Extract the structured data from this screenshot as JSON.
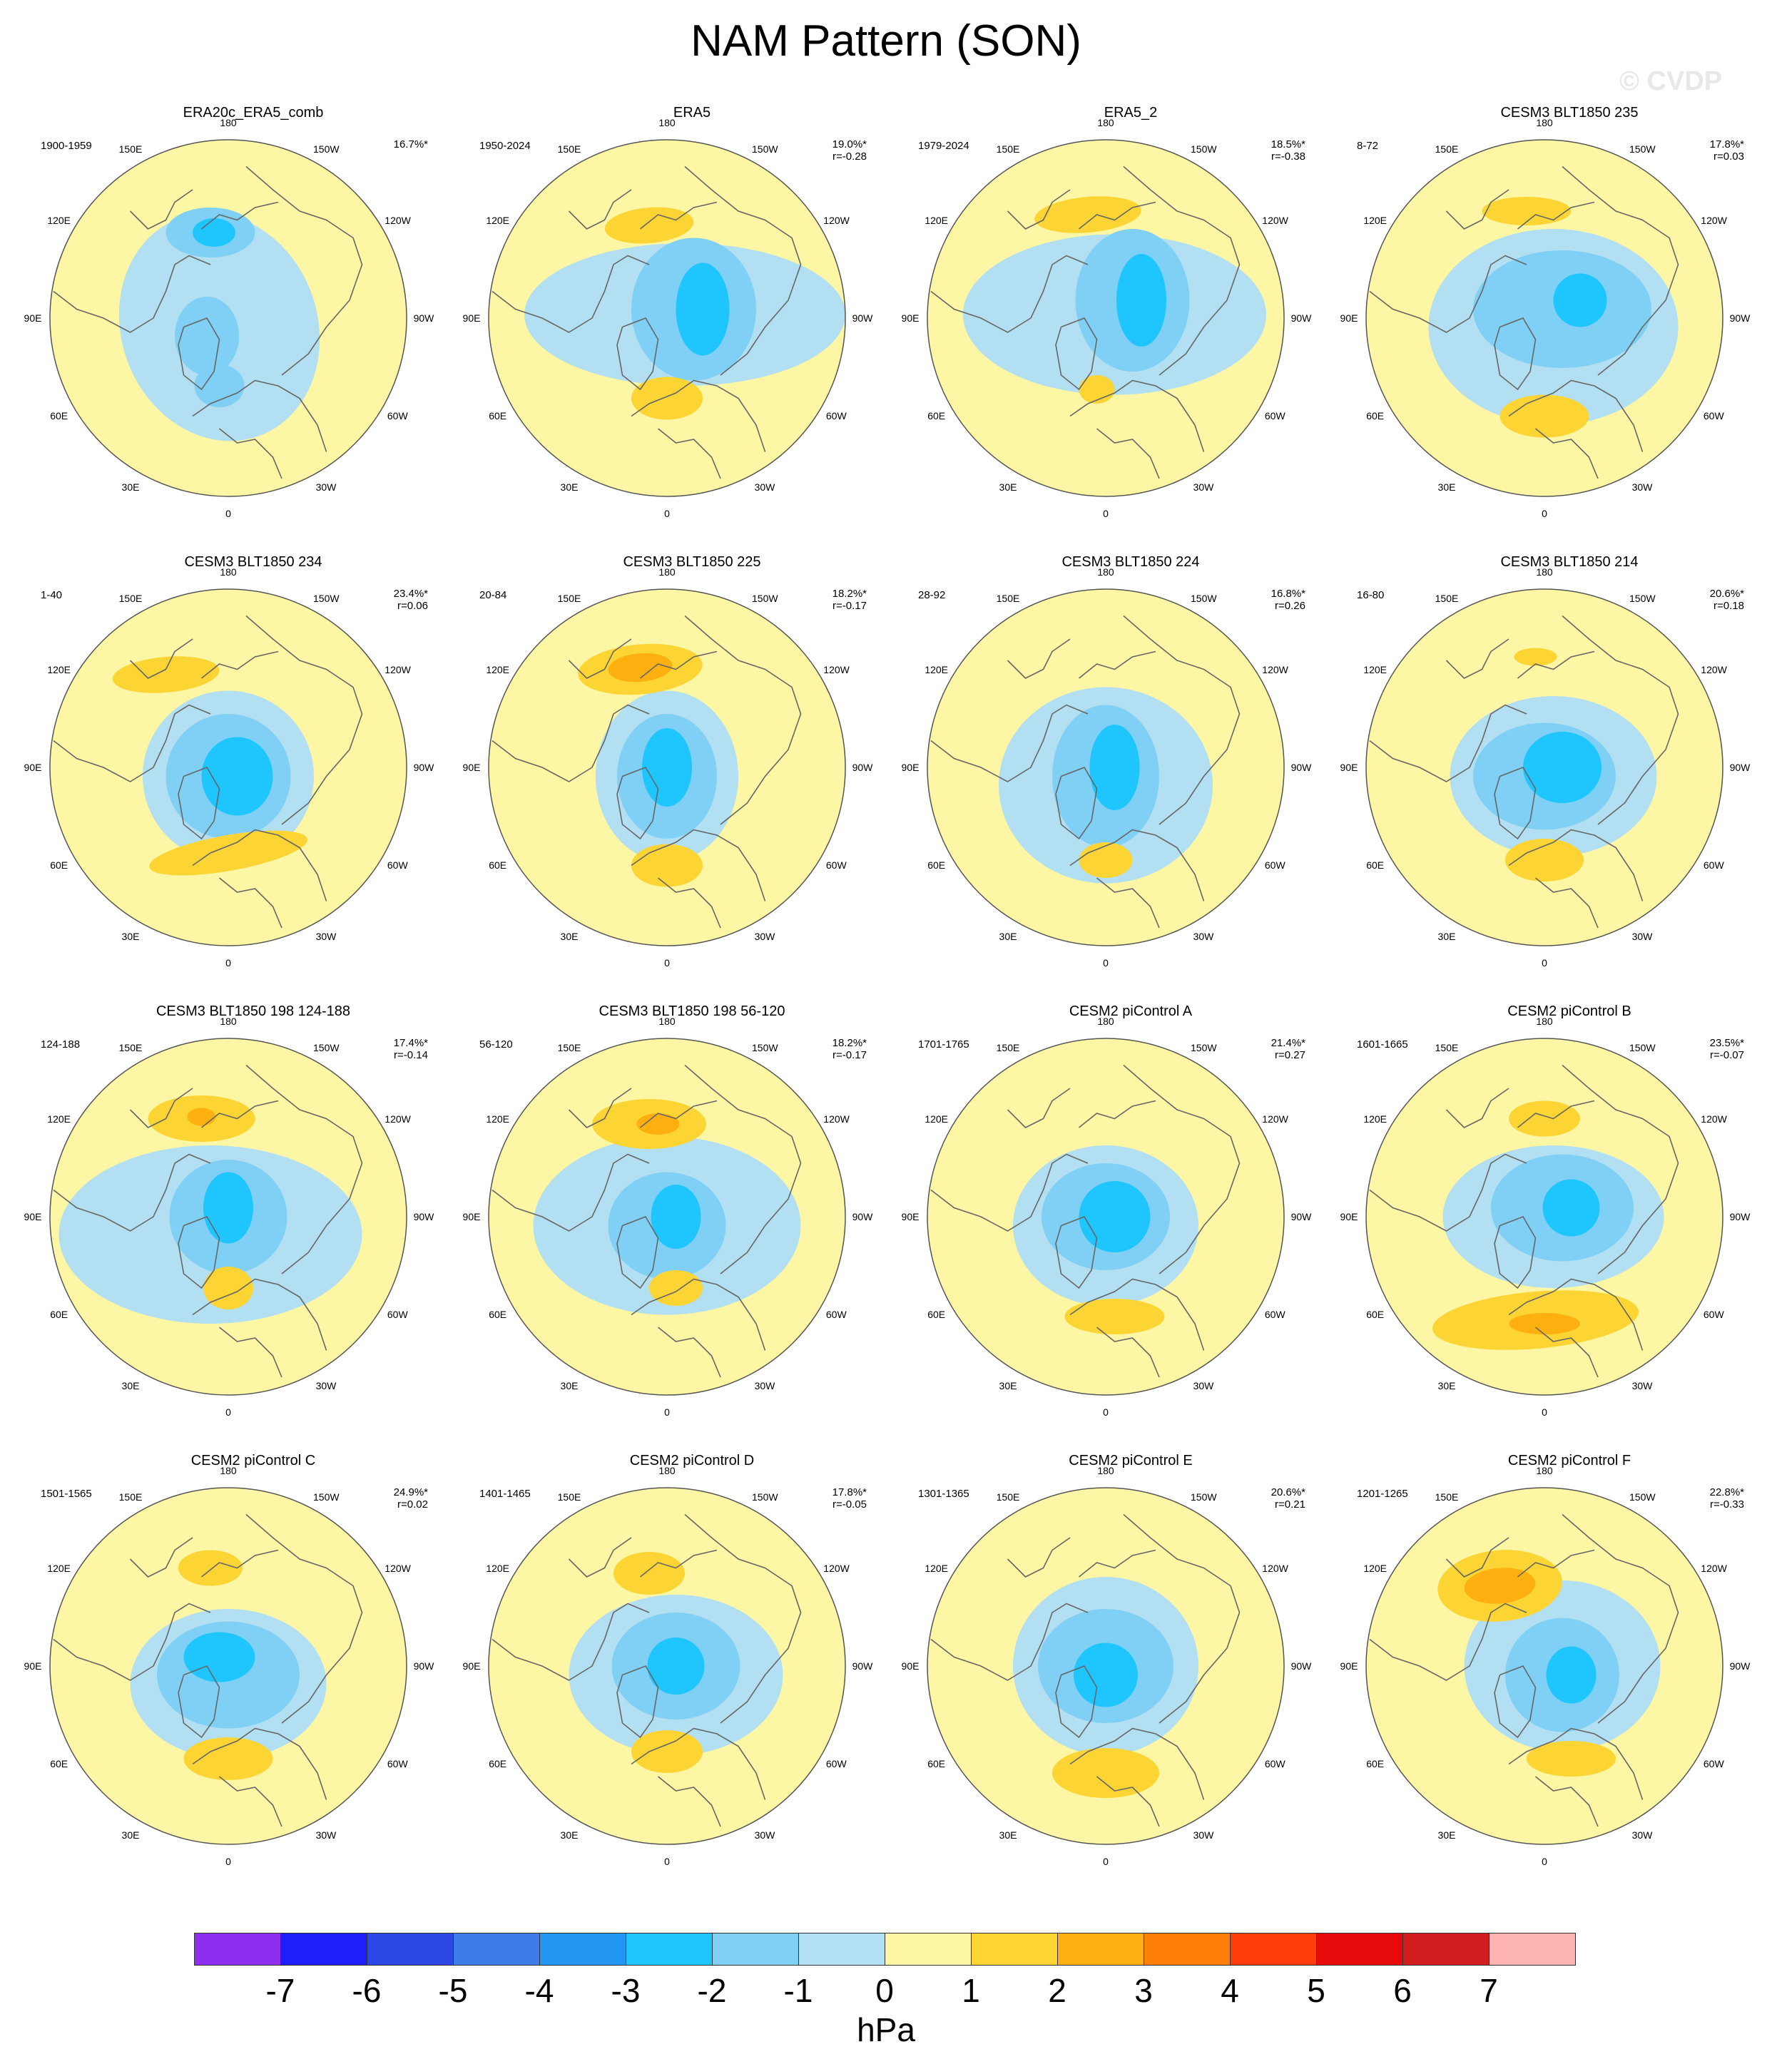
{
  "figure": {
    "title": "NAM Pattern (SON)",
    "watermark": "© CVDP",
    "colors": {
      "ocean_positive": "#fdf6a4",
      "ocean_negative": "#b2dff2",
      "coast": "#666666"
    }
  },
  "panels": [
    {
      "title": "ERA20c_ERA5_comb",
      "period": "1900-1959",
      "pct": "16.7%*",
      "r": ""
    },
    {
      "title": "ERA5",
      "period": "1950-2024",
      "pct": "19.0%*",
      "r": "r=-0.28"
    },
    {
      "title": "ERA5_2",
      "period": "1979-2024",
      "pct": "18.5%*",
      "r": "r=-0.38"
    },
    {
      "title": "CESM3 BLT1850 235",
      "period": "8-72",
      "pct": "17.8%*",
      "r": "r=0.03"
    },
    {
      "title": "CESM3 BLT1850 234",
      "period": "1-40",
      "pct": "23.4%*",
      "r": "r=0.06"
    },
    {
      "title": "CESM3 BLT1850 225",
      "period": "20-84",
      "pct": "18.2%*",
      "r": "r=-0.17"
    },
    {
      "title": "CESM3 BLT1850 224",
      "period": "28-92",
      "pct": "16.8%*",
      "r": "r=0.26"
    },
    {
      "title": "CESM3 BLT1850 214",
      "period": "16-80",
      "pct": "20.6%*",
      "r": "r=0.18"
    },
    {
      "title": "CESM3 BLT1850 198 124-188",
      "period": "124-188",
      "pct": "17.4%*",
      "r": "r=-0.14"
    },
    {
      "title": "CESM3 BLT1850 198 56-120",
      "period": "56-120",
      "pct": "18.2%*",
      "r": "r=-0.17"
    },
    {
      "title": "CESM2 piControl A",
      "period": "1701-1765",
      "pct": "21.4%*",
      "r": "r=0.27"
    },
    {
      "title": "CESM2 piControl B",
      "period": "1601-1665",
      "pct": "23.5%*",
      "r": "r=-0.07"
    },
    {
      "title": "CESM2 piControl C",
      "period": "1501-1565",
      "pct": "24.9%*",
      "r": "r=0.02"
    },
    {
      "title": "CESM2 piControl D",
      "period": "1401-1465",
      "pct": "17.8%*",
      "r": "r=-0.05"
    },
    {
      "title": "CESM2 piControl E",
      "period": "1301-1365",
      "pct": "20.6%*",
      "r": "r=0.21"
    },
    {
      "title": "CESM2 piControl F",
      "period": "1201-1265",
      "pct": "22.8%*",
      "r": "r=-0.33"
    }
  ],
  "longitude_labels": [
    "180",
    "150E",
    "120E",
    "90E",
    "60E",
    "30E",
    "0",
    "30W",
    "60W",
    "90W",
    "120W",
    "150W"
  ],
  "colorbar": {
    "unit": "hPa",
    "labels": [
      "-7",
      "-6",
      "-5",
      "-4",
      "-3",
      "-2",
      "-1",
      "0",
      "1",
      "2",
      "3",
      "4",
      "5",
      "6",
      "7"
    ],
    "colors": [
      "#8e2ff0",
      "#1e1efa",
      "#2d46e6",
      "#3c7de8",
      "#2196f3",
      "#1ec5ff",
      "#7fd0f4",
      "#b2dff2",
      "#fdf6a4",
      "#fcd535",
      "#fdb00f",
      "#fd7f0a",
      "#ff3c0a",
      "#e60a0a",
      "#d21e1e",
      "#ffb4b4"
    ]
  }
}
